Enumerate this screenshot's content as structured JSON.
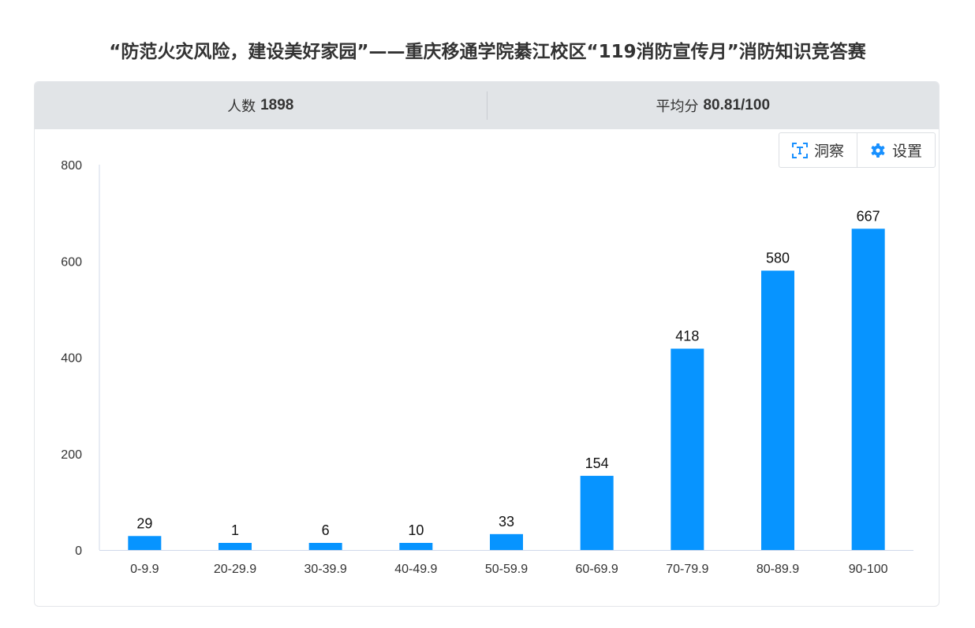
{
  "title": "“防范火灾风险，建设美好家园”——重庆移通学院綦江校区“119消防宣传月”消防知识竞答赛",
  "stats": {
    "count_label": "人数",
    "count_value": "1898",
    "avg_label": "平均分",
    "avg_value": "80.81/100"
  },
  "tools": {
    "insight_label": "洞察",
    "insight_icon": "text-recognition-icon",
    "settings_label": "设置",
    "settings_icon": "gear-icon"
  },
  "colors": {
    "bar": "#0794ff",
    "accent": "#1890ff"
  },
  "chart_data": {
    "type": "bar",
    "categories": [
      "0-9.9",
      "20-29.9",
      "30-39.9",
      "40-49.9",
      "50-59.9",
      "60-69.9",
      "70-79.9",
      "80-89.9",
      "90-100"
    ],
    "values": [
      29,
      1,
      6,
      10,
      33,
      154,
      418,
      580,
      667
    ],
    "ylim": [
      0,
      800
    ],
    "yticks": [
      0,
      200,
      400,
      600,
      800
    ],
    "xlabel": "",
    "ylabel": "",
    "grid": false
  }
}
